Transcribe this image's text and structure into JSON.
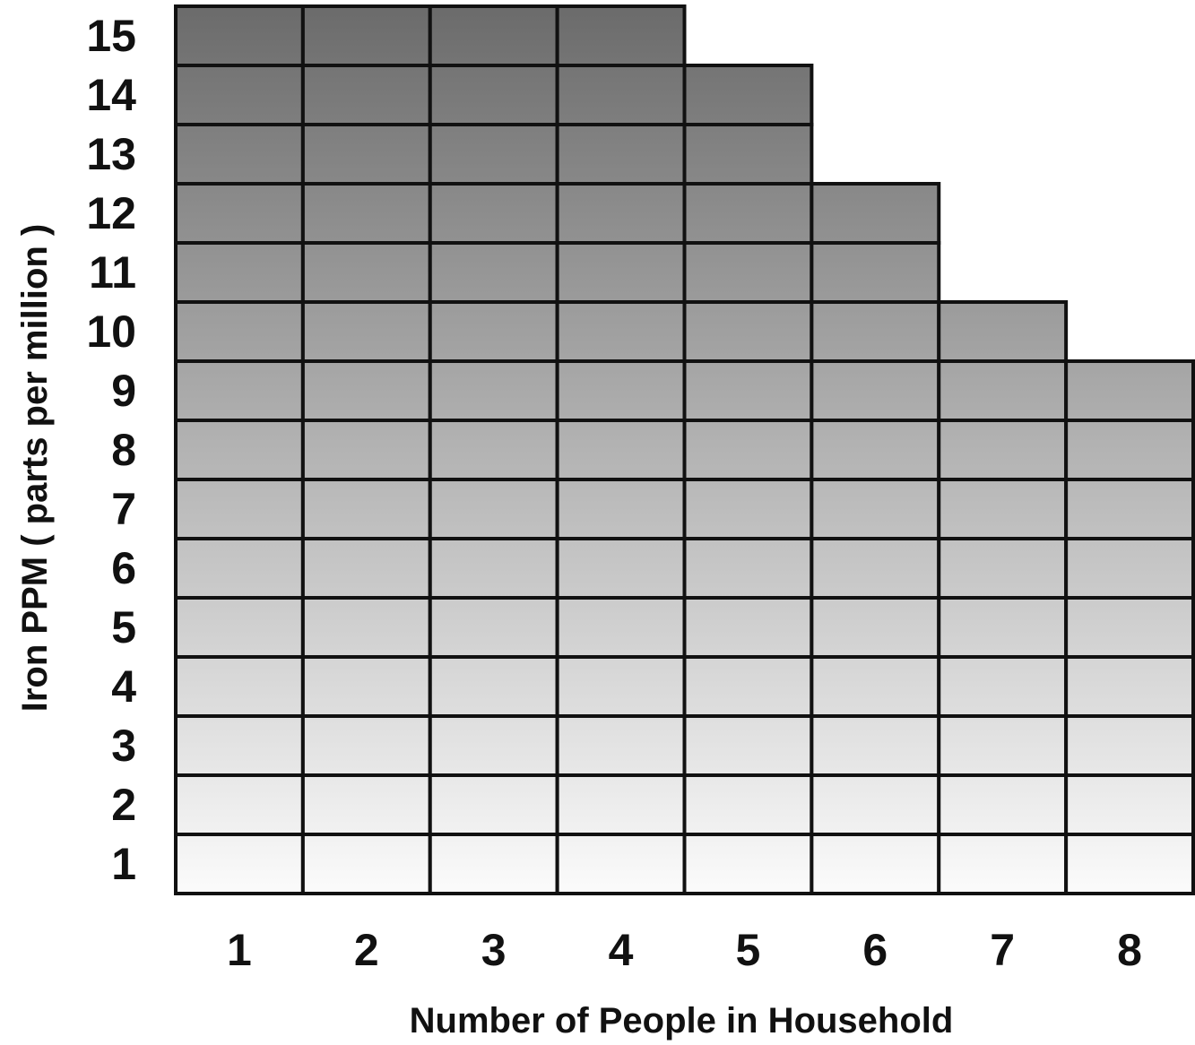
{
  "chart_data": {
    "type": "heatmap",
    "title": "",
    "xlabel": "Number of People in Household",
    "ylabel": "Iron PPM  ( parts per million )",
    "x_categories": [
      "1",
      "2",
      "3",
      "4",
      "5",
      "6",
      "7",
      "8"
    ],
    "y_categories": [
      "1",
      "2",
      "3",
      "4",
      "5",
      "6",
      "7",
      "8",
      "9",
      "10",
      "11",
      "12",
      "13",
      "14",
      "15"
    ],
    "max_iron_ppm_by_people": [
      {
        "people": 1,
        "max_ppm": 15
      },
      {
        "people": 2,
        "max_ppm": 15
      },
      {
        "people": 3,
        "max_ppm": 15
      },
      {
        "people": 4,
        "max_ppm": 15
      },
      {
        "people": 5,
        "max_ppm": 14
      },
      {
        "people": 6,
        "max_ppm": 12
      },
      {
        "people": 7,
        "max_ppm": 10
      },
      {
        "people": 8,
        "max_ppm": 9
      }
    ],
    "color_scale": {
      "low": "#fbfbfb",
      "high": "#6b6b6b"
    },
    "grid": true,
    "legend": "none"
  }
}
